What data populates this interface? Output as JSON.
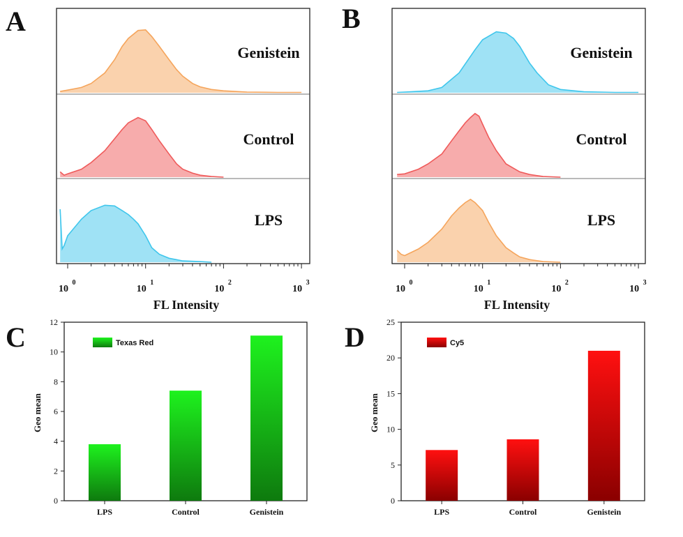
{
  "panels": {
    "A": {
      "letter": "A",
      "xlabel": "FL Intensity",
      "tick_labels": [
        "10",
        "10",
        "10",
        "10"
      ],
      "tick_exponents": [
        "0",
        "1",
        "2",
        "3"
      ],
      "rows": [
        {
          "label": "Genistein"
        },
        {
          "label": "Control"
        },
        {
          "label": "LPS"
        }
      ]
    },
    "B": {
      "letter": "B",
      "xlabel": "FL Intensity",
      "tick_labels": [
        "10",
        "10",
        "10",
        "10"
      ],
      "tick_exponents": [
        "0",
        "1",
        "2",
        "3"
      ],
      "rows": [
        {
          "label": "Genistein"
        },
        {
          "label": "Control"
        },
        {
          "label": "LPS"
        }
      ]
    },
    "C": {
      "letter": "C",
      "ylabel": "Geo mean",
      "legend": "Texas Red"
    },
    "D": {
      "letter": "D",
      "ylabel": "Geo mean",
      "legend": "Cy5"
    }
  },
  "colors": {
    "orange": "#f5a55c",
    "red": "#ef5a5a",
    "blue": "#3fc6ec",
    "green_top": "#1ef21e",
    "green_bottom": "#0e7a0e",
    "red_top": "#ff1010",
    "red_bottom": "#8a0000"
  },
  "chart_data": [
    {
      "type": "area",
      "panel": "A",
      "title": "",
      "xlabel": "FL Intensity",
      "ylabel": "",
      "x_scale": "log",
      "xlim": [
        0.8,
        1000
      ],
      "series": [
        {
          "name": "Genistein",
          "color": "orange",
          "x": [
            0.8,
            1,
            1.5,
            2,
            3,
            4,
            5,
            6,
            8,
            10,
            12,
            15,
            20,
            25,
            30,
            40,
            50,
            70,
            100,
            200,
            500,
            1000
          ],
          "y": [
            0.02,
            0.04,
            0.08,
            0.14,
            0.3,
            0.5,
            0.7,
            0.82,
            0.94,
            0.95,
            0.85,
            0.7,
            0.5,
            0.35,
            0.25,
            0.14,
            0.09,
            0.05,
            0.03,
            0.01,
            0.005,
            0.005
          ]
        },
        {
          "name": "Control",
          "color": "red",
          "x": [
            0.8,
            0.9,
            1,
            1.5,
            2,
            3,
            4,
            5,
            6,
            8,
            10,
            12,
            15,
            20,
            25,
            30,
            40,
            50,
            70,
            100
          ],
          "y": [
            0.08,
            0.03,
            0.05,
            0.12,
            0.22,
            0.4,
            0.58,
            0.72,
            0.82,
            0.9,
            0.85,
            0.72,
            0.55,
            0.35,
            0.2,
            0.12,
            0.06,
            0.03,
            0.01,
            0.0
          ]
        },
        {
          "name": "LPS",
          "color": "blue",
          "x": [
            0.8,
            0.85,
            0.9,
            1,
            1.5,
            2,
            3,
            4,
            5,
            6,
            7,
            8,
            10,
            12,
            15,
            20,
            30,
            50,
            70
          ],
          "y": [
            0.8,
            0.2,
            0.25,
            0.4,
            0.65,
            0.78,
            0.86,
            0.85,
            0.78,
            0.72,
            0.65,
            0.58,
            0.4,
            0.22,
            0.12,
            0.06,
            0.02,
            0.01,
            0.0
          ]
        }
      ]
    },
    {
      "type": "area",
      "panel": "B",
      "title": "",
      "xlabel": "FL Intensity",
      "ylabel": "",
      "x_scale": "log",
      "xlim": [
        0.8,
        1000
      ],
      "series": [
        {
          "name": "Genistein",
          "color": "blue",
          "x": [
            0.8,
            1,
            2,
            3,
            5,
            8,
            10,
            15,
            20,
            25,
            30,
            40,
            50,
            70,
            100,
            200,
            500,
            1000
          ],
          "y": [
            0.005,
            0.01,
            0.03,
            0.08,
            0.3,
            0.65,
            0.8,
            0.92,
            0.9,
            0.82,
            0.7,
            0.45,
            0.3,
            0.12,
            0.05,
            0.015,
            0.005,
            0.005
          ]
        },
        {
          "name": "Control",
          "color": "red",
          "x": [
            0.8,
            1,
            1.5,
            2,
            3,
            4,
            5,
            6,
            7,
            8,
            9,
            10,
            12,
            15,
            20,
            30,
            40,
            60,
            100
          ],
          "y": [
            0.04,
            0.05,
            0.12,
            0.2,
            0.35,
            0.55,
            0.7,
            0.82,
            0.9,
            0.96,
            0.92,
            0.8,
            0.6,
            0.4,
            0.2,
            0.08,
            0.04,
            0.01,
            0.0
          ]
        },
        {
          "name": "LPS",
          "color": "orange",
          "x": [
            0.8,
            0.9,
            1,
            1.5,
            2,
            3,
            4,
            5,
            6,
            7,
            8,
            10,
            12,
            15,
            20,
            25,
            30,
            40,
            60,
            100
          ],
          "y": [
            0.18,
            0.12,
            0.1,
            0.2,
            0.3,
            0.5,
            0.7,
            0.82,
            0.9,
            0.95,
            0.9,
            0.78,
            0.6,
            0.4,
            0.22,
            0.14,
            0.08,
            0.04,
            0.01,
            0.0
          ]
        }
      ]
    },
    {
      "type": "bar",
      "panel": "C",
      "title": "",
      "xlabel": "",
      "ylabel": "Geo mean",
      "categories": [
        "LPS",
        "Control",
        "Genistein"
      ],
      "series": [
        {
          "name": "Texas Red",
          "values": [
            3.8,
            7.4,
            11.1
          ]
        }
      ],
      "ylim": [
        0,
        12
      ],
      "yticks": [
        0,
        2,
        4,
        6,
        8,
        10,
        12
      ],
      "grid": false,
      "legend": "top-left"
    },
    {
      "type": "bar",
      "panel": "D",
      "title": "",
      "xlabel": "",
      "ylabel": "Geo mean",
      "categories": [
        "LPS",
        "Control",
        "Genistein"
      ],
      "series": [
        {
          "name": "Cy5",
          "values": [
            7.1,
            8.6,
            21.0
          ]
        }
      ],
      "ylim": [
        0,
        25
      ],
      "yticks": [
        0,
        5,
        10,
        15,
        20,
        25
      ],
      "grid": false,
      "legend": "top-left"
    }
  ]
}
